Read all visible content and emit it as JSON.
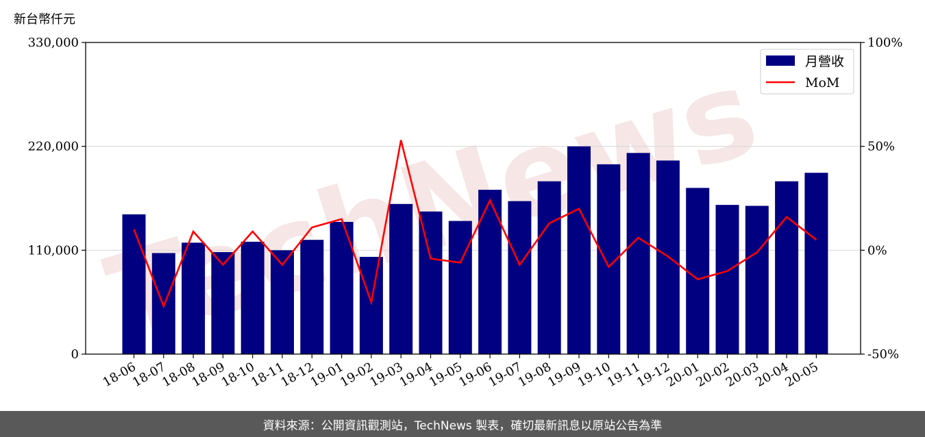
{
  "unit_label": "新台幣仟元",
  "footer_text": "資料來源：公開資訊觀測站，TechNews 製表，確切最新訊息以原站公告為準",
  "watermark_text": "TechNews",
  "colors": {
    "bar": "#000080",
    "line": "#ff0000",
    "grid": "#d9d9d9",
    "footer_bg": "#595959"
  },
  "chart_data": {
    "type": "bar",
    "categories": [
      "18-06",
      "18-07",
      "18-08",
      "18-09",
      "18-10",
      "18-11",
      "18-12",
      "19-01",
      "19-02",
      "19-03",
      "19-04",
      "19-05",
      "19-06",
      "19-07",
      "19-08",
      "19-09",
      "19-10",
      "19-11",
      "19-12",
      "20-01",
      "20-02",
      "20-03",
      "20-04",
      "20-05"
    ],
    "series": [
      {
        "name": "月營收",
        "type": "bar",
        "axis": "left",
        "values": [
          148000,
          107000,
          118000,
          108000,
          119000,
          110000,
          121000,
          140000,
          103000,
          159000,
          151000,
          141000,
          174000,
          162000,
          183000,
          220000,
          201000,
          213000,
          205000,
          176000,
          158000,
          157000,
          183000,
          192000
        ]
      },
      {
        "name": "MoM",
        "type": "line",
        "axis": "right",
        "values": [
          10,
          -27,
          9,
          -7,
          9,
          -7,
          11,
          15,
          -25,
          53,
          -4,
          -6,
          24,
          -7,
          13,
          20,
          -8,
          6,
          -3,
          -14,
          -10,
          -1,
          16,
          5
        ]
      }
    ],
    "y_left": {
      "range": [
        0,
        330000
      ],
      "ticks": [
        "0",
        "110,000",
        "220,000",
        "330,000"
      ]
    },
    "y_right": {
      "range": [
        -50,
        100
      ],
      "ticks": [
        "-50%",
        "0%",
        "50%",
        "100%"
      ]
    },
    "grid": "horizontal",
    "legend_position": "top-right"
  }
}
